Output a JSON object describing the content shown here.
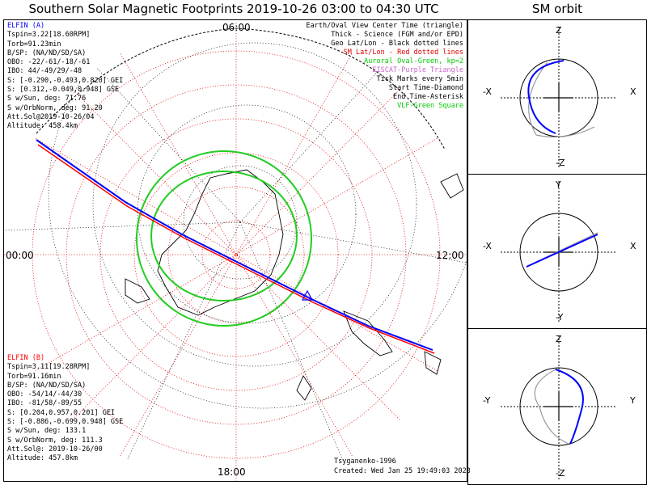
{
  "title": "Southern Solar Magnetic Footprints 2019-10-26 03:00 to 04:30 UTC",
  "sm_orbit_title": "SM orbit",
  "local_time_labels": {
    "top": "06:00",
    "left": "00:00",
    "right": "12:00",
    "bottom": "18:00"
  },
  "elfin_a": {
    "name": "ELFIN (A)",
    "lines": [
      "Tspin=3.22[18.60RPM]",
      "Torb=91.23min",
      "B/SP: (NA/ND/SD/SA)",
      "OBO: -22/-61/-18/-61",
      "IBO: 44/-49/29/-48",
      "S: [-0.290,-0.493,0.820] GEI",
      "S: [0.312,-0.049,0.948] GSE",
      "S w/Sun, deg: 71.76",
      "S w/OrbNorm, deg: 91.20",
      "Att.Sol@2019-10-26/04",
      "Altitude: 458.4km"
    ]
  },
  "elfin_b": {
    "name": "ELFIN (B)",
    "lines": [
      "Tspin=3.11[19.28RPM]",
      "Torb=91.16min",
      "B/SP: (NA/ND/SD/SA)",
      "OBO: -54/14/-44/30",
      "IBO: -81/58/-89/55",
      "S: [0.204,0.957,0.201] GEI",
      "S: [-0.886,-0.699,0.948] GSE",
      "S w/Sun, deg: 133.1",
      "S w/OrbNorm, deg: 111.3",
      "Att.Sol@: 2019-10-26/00",
      "Altitude: 457.8km"
    ]
  },
  "legend": [
    {
      "text": "Earth/Oval View Center Time (triangle)",
      "color": "#000000"
    },
    {
      "text": "Thick - Science (FGM and/or EPD)",
      "color": "#000000"
    },
    {
      "text": "Geo Lat/Lon - Black dotted lines",
      "color": "#000000"
    },
    {
      "text": "SM Lat/Lon - Red dotted lines",
      "color": "#e00000"
    },
    {
      "text": "Auroral Oval-Green, kp=2",
      "color": "#00cc00"
    },
    {
      "text": "EISCAT-Purple Triangle",
      "color": "#cc66cc"
    },
    {
      "text": "Tick Marks every 5min",
      "color": "#000000"
    },
    {
      "text": "Start Time-Diamond",
      "color": "#000000"
    },
    {
      "text": "End Time-Asterisk",
      "color": "#000000"
    },
    {
      "text": "VLF-Green Square",
      "color": "#00cc00"
    }
  ],
  "credit": "Tsyganenko-1996",
  "created": "Created: Wed Jan 25 19:49:03 2023",
  "sm_panels": [
    {
      "top": "Z",
      "bottom": "-Z",
      "left": "-X",
      "right": "X"
    },
    {
      "top": "Y",
      "bottom": "-Y",
      "left": "-X",
      "right": "X"
    },
    {
      "top": "Z",
      "bottom": "-Z",
      "left": "-Y",
      "right": "Y"
    }
  ],
  "colors": {
    "elfin_a": "#0000ff",
    "elfin_b": "#ff0000",
    "oval": "#22cc22",
    "sm_grid": "#e00000",
    "geo_grid": "#000000"
  }
}
